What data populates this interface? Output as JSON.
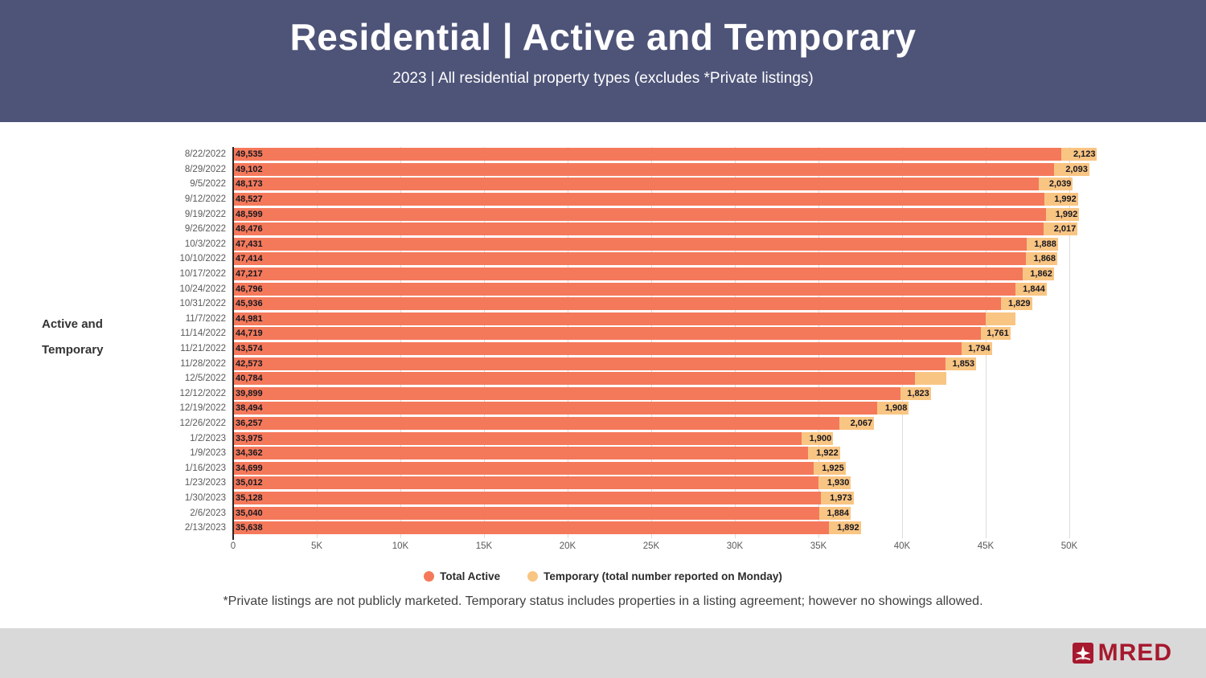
{
  "header": {
    "title": "Residential | Active and Temporary",
    "subtitle": "2023 | All residential property types (excludes *Private listings)"
  },
  "chart_data": {
    "type": "bar",
    "orientation": "horizontal",
    "stacked": true,
    "title": "Residential | Active and Temporary",
    "subtitle": "2023 | All residential property types (excludes *Private listings)",
    "ylabel": "Active and Temporary",
    "ylabel_lines": [
      "Active and",
      "Temporary"
    ],
    "xlim": [
      0,
      52000
    ],
    "grid": true,
    "legend_position": "bottom",
    "categories": [
      "8/22/2022",
      "8/29/2022",
      "9/5/2022",
      "9/12/2022",
      "9/19/2022",
      "9/26/2022",
      "10/3/2022",
      "10/10/2022",
      "10/17/2022",
      "10/24/2022",
      "10/31/2022",
      "11/7/2022",
      "11/14/2022",
      "11/21/2022",
      "11/28/2022",
      "12/5/2022",
      "12/12/2022",
      "12/19/2022",
      "12/26/2022",
      "1/2/2023",
      "1/9/2023",
      "1/16/2023",
      "1/23/2023",
      "1/30/2023",
      "2/6/2023",
      "2/13/2023"
    ],
    "series": [
      {
        "name": "Total Active",
        "color": "#F4795B",
        "values": [
          49535,
          49102,
          48173,
          48527,
          48599,
          48476,
          47431,
          47414,
          47217,
          46796,
          45936,
          44981,
          44719,
          43574,
          42573,
          40784,
          39899,
          38494,
          36257,
          33975,
          34362,
          34699,
          35012,
          35128,
          35040,
          35638
        ],
        "data_labels": [
          "49,535",
          "49,102",
          "48,173",
          "48,527",
          "48,599",
          "48,476",
          "47,431",
          "47,414",
          "47,217",
          "46,796",
          "45,936",
          "44,981",
          "44,719",
          "43,574",
          "42,573",
          "40,784",
          "39,899",
          "38,494",
          "36,257",
          "33,975",
          "34,362",
          "34,699",
          "35,012",
          "35,128",
          "35,040",
          "35,638"
        ]
      },
      {
        "name": "Temporary (total number reported on Monday)",
        "color": "#F9C583",
        "values": [
          2123,
          2093,
          2039,
          1992,
          1992,
          2017,
          1888,
          1868,
          1862,
          1844,
          1829,
          1800,
          1761,
          1794,
          1853,
          1850,
          1823,
          1908,
          2067,
          1900,
          1922,
          1925,
          1930,
          1973,
          1884,
          1892
        ],
        "data_labels": [
          "2,123",
          "2,093",
          "2,039",
          "1,992",
          "1,992",
          "2,017",
          "1,888",
          "1,868",
          "1,862",
          "1,844",
          "1,829",
          null,
          "1,761",
          "1,794",
          "1,853",
          null,
          "1,823",
          "1,908",
          "2,067",
          "1,900",
          "1,922",
          "1,925",
          "1,930",
          "1,973",
          "1,884",
          "1,892"
        ]
      }
    ],
    "x_ticks": {
      "labels": [
        "0",
        "5K",
        "10K",
        "15K",
        "20K",
        "25K",
        "30K",
        "35K",
        "40K",
        "45K",
        "50K"
      ],
      "values": [
        0,
        5000,
        10000,
        15000,
        20000,
        25000,
        30000,
        35000,
        40000,
        45000,
        50000
      ]
    }
  },
  "footnote": "*Private listings are not publicly marketed. Temporary status includes properties in a listing agreement; however no showings allowed.",
  "footer": {
    "brand": "MRED"
  }
}
